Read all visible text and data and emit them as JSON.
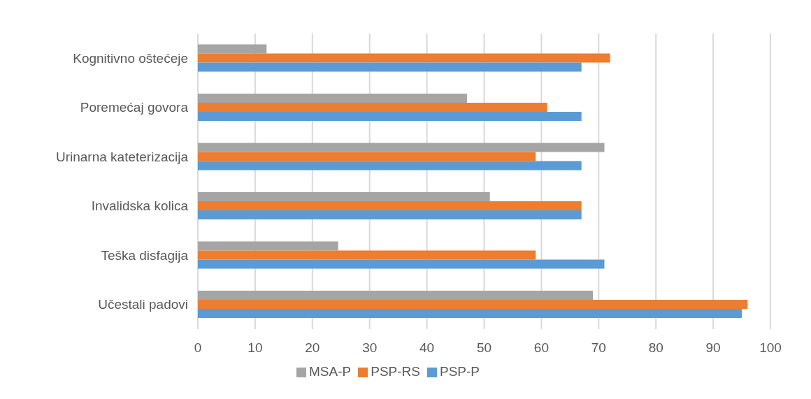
{
  "chart_data": {
    "type": "bar",
    "orientation": "horizontal",
    "categories": [
      "Kognitivno oštećeje",
      "Poremećaj govora",
      "Urinarna kateterizacija",
      "Invalidska kolica",
      "Teška disfagija",
      "Učestali padovi"
    ],
    "series": [
      {
        "name": "MSA-P",
        "color": "#a5a5a5",
        "values": [
          12,
          47,
          71,
          51,
          24.5,
          69
        ]
      },
      {
        "name": "PSP-RS",
        "color": "#ed7d31",
        "values": [
          72,
          61,
          59,
          67,
          59,
          96
        ]
      },
      {
        "name": "PSP-P",
        "color": "#5b9bd5",
        "values": [
          67,
          67,
          67,
          67,
          71,
          95
        ]
      }
    ],
    "xlim": [
      0,
      100
    ],
    "xticks": [
      0,
      10,
      20,
      30,
      40,
      50,
      60,
      70,
      80,
      90,
      100
    ],
    "grid": "x",
    "legend": "bottom"
  }
}
